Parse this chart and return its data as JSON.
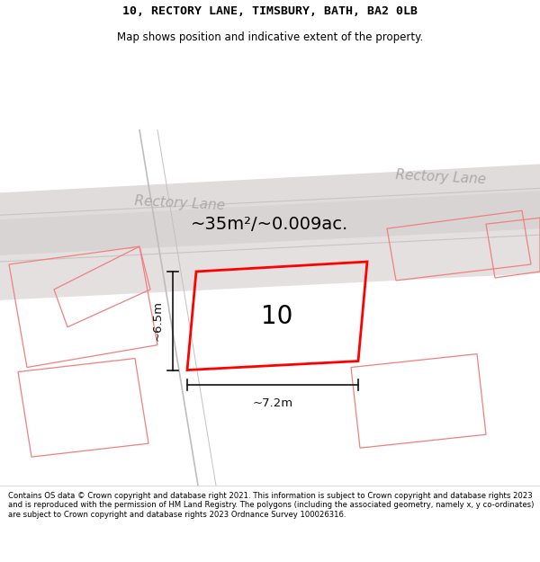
{
  "title_line1": "10, RECTORY LANE, TIMSBURY, BATH, BA2 0LB",
  "title_line2": "Map shows position and indicative extent of the property.",
  "area_text": "~35m²/~0.009ac.",
  "property_number": "10",
  "dim_height": "~6.5m",
  "dim_width": "~7.2m",
  "street_label1": "Rectory Lane",
  "street_label2": "Rectory Lane",
  "footer_text": "Contains OS data © Crown copyright and database right 2021. This information is subject to Crown copyright and database rights 2023 and is reproduced with the permission of HM Land Registry. The polygons (including the associated geometry, namely x, y co-ordinates) are subject to Crown copyright and database rights 2023 Ordnance Survey 100026316.",
  "plot_color": "#ff0000",
  "other_plot_color": "#f08080",
  "map_bg": "#edeaea",
  "road_fill": "#d8d4d4",
  "road_edge": "#ccc8c8",
  "title_bg": "#ffffff",
  "footer_bg": "#ffffff",
  "street_color": "#b0a8a8",
  "dim_color": "#111111"
}
